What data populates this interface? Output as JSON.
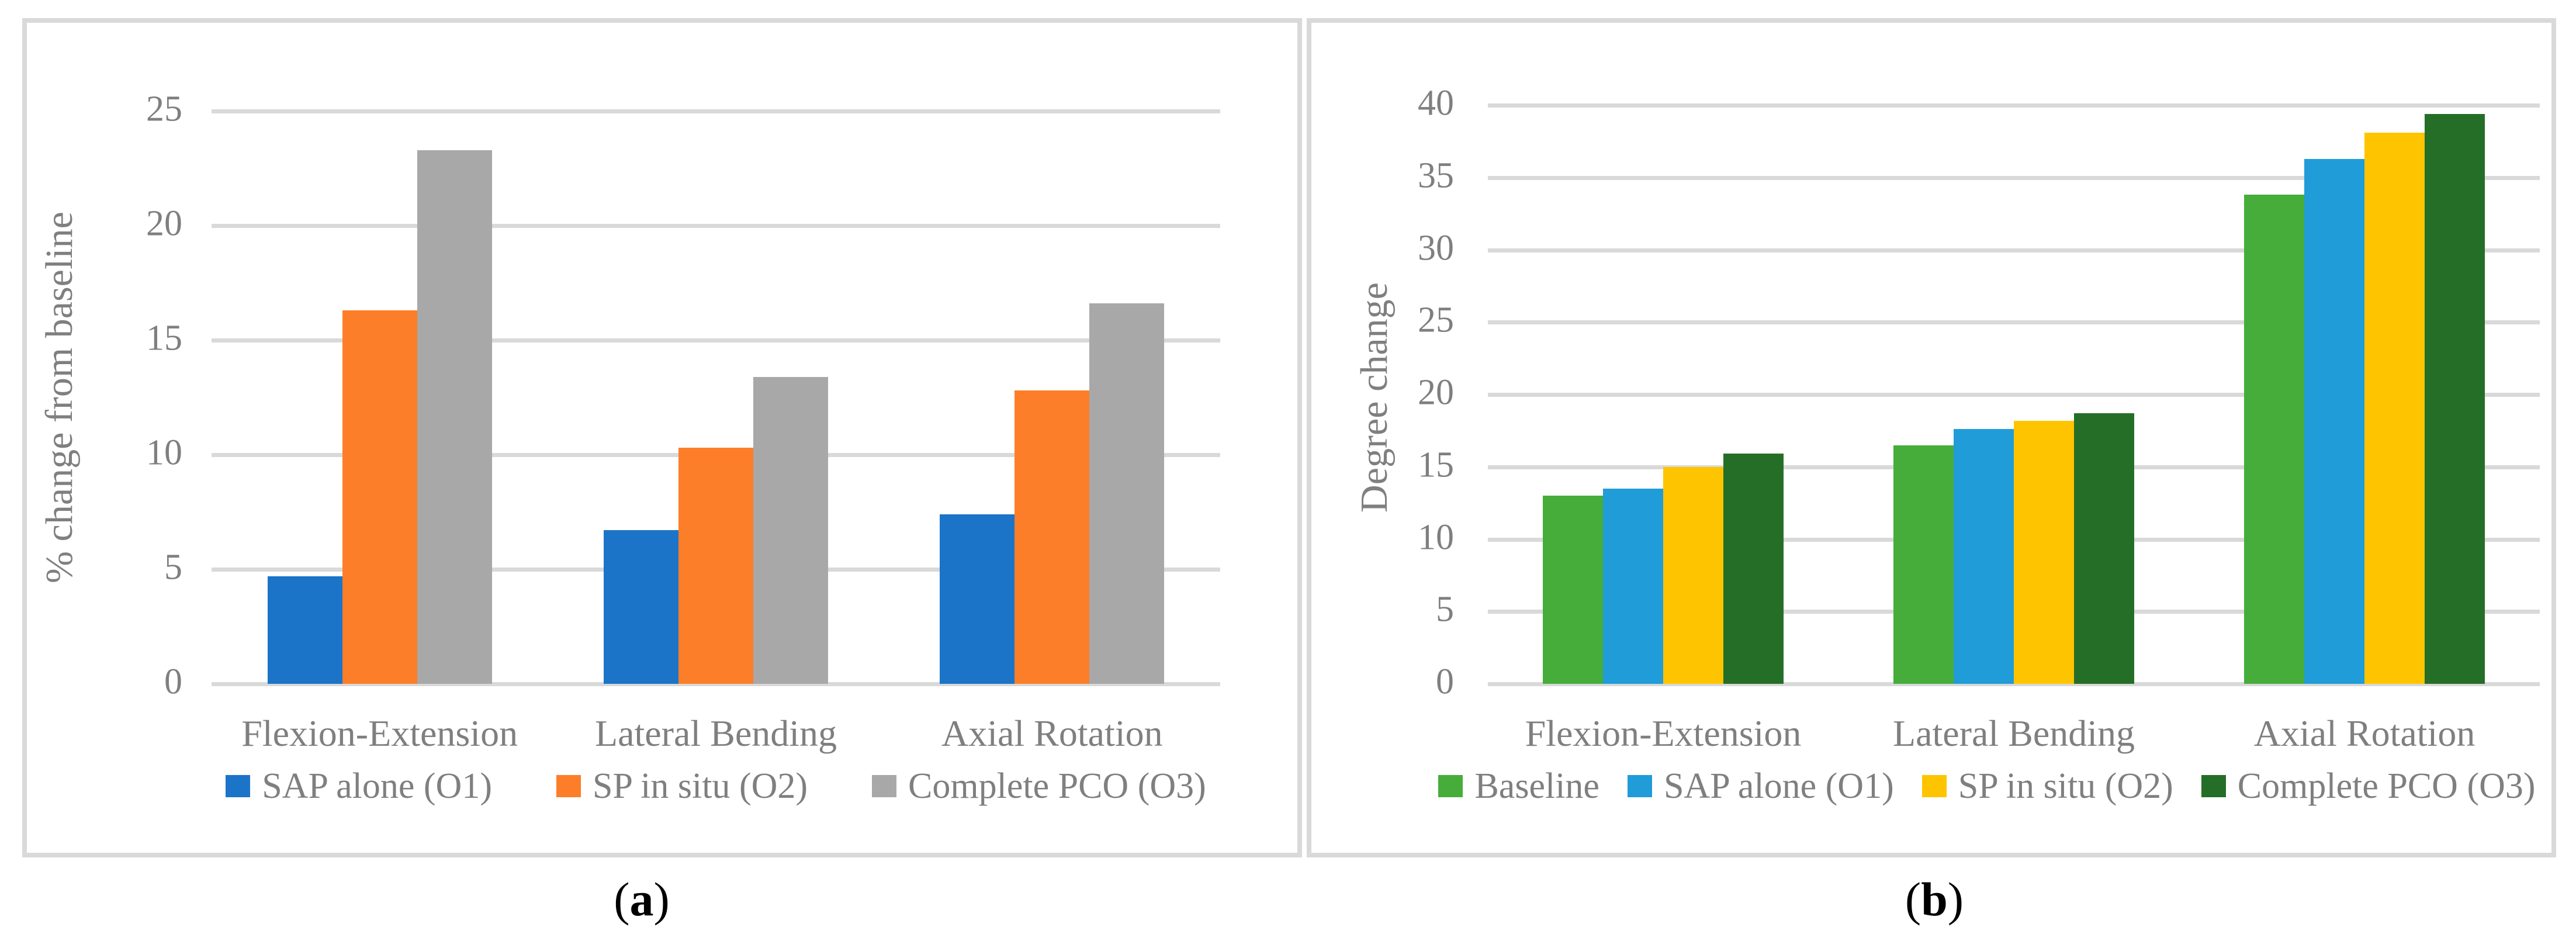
{
  "styles": {
    "background": "#ffffff",
    "panel_border_color": "#d9d9d9",
    "grid_color": "#d9d9d9",
    "axis_line_color": "#d9d9d9",
    "text_color": "#7f7f7f",
    "caption_color": "#000000"
  },
  "captions": {
    "a": {
      "open": "(",
      "letter": "a",
      "close": ")"
    },
    "b": {
      "open": "(",
      "letter": "b",
      "close": ")"
    }
  },
  "chart_data": [
    {
      "type": "bar",
      "panel": "a",
      "title": "",
      "xlabel": "",
      "ylabel": "% change from baseline",
      "ylim": [
        0,
        25
      ],
      "ytick_interval": 5,
      "yticks": [
        0,
        5,
        10,
        15,
        20,
        25
      ],
      "grid": true,
      "legend_position": "bottom",
      "categories": [
        "Flexion-Extension",
        "Lateral Bending",
        "Axial Rotation"
      ],
      "series": [
        {
          "name": "SAP alone (O1)",
          "color": "#1b74c8",
          "values": [
            4.7,
            6.7,
            7.4
          ]
        },
        {
          "name": "SP in situ (O2)",
          "color": "#fd7e28",
          "values": [
            16.3,
            10.3,
            12.8
          ]
        },
        {
          "name": "Complete PCO (O3)",
          "color": "#a8a8a8",
          "values": [
            23.3,
            13.4,
            16.6
          ]
        }
      ]
    },
    {
      "type": "bar",
      "panel": "b",
      "title": "",
      "xlabel": "",
      "ylabel": "Degree change",
      "ylim": [
        0,
        40
      ],
      "ytick_interval": 5,
      "yticks": [
        0,
        5,
        10,
        15,
        20,
        25,
        30,
        35,
        40
      ],
      "grid": true,
      "legend_position": "bottom",
      "categories": [
        "Flexion-Extension",
        "Lateral Bending",
        "Axial Rotation"
      ],
      "series": [
        {
          "name": "Baseline",
          "color": "#46ad3b",
          "values": [
            13.0,
            16.5,
            33.8
          ]
        },
        {
          "name": "SAP alone (O1)",
          "color": "#209cd8",
          "values": [
            13.5,
            17.6,
            36.3
          ]
        },
        {
          "name": "SP in situ (O2)",
          "color": "#ffc400",
          "values": [
            15.0,
            18.2,
            38.1
          ]
        },
        {
          "name": "Complete PCO (O3)",
          "color": "#256e28",
          "values": [
            15.9,
            18.7,
            39.4
          ]
        }
      ]
    }
  ]
}
